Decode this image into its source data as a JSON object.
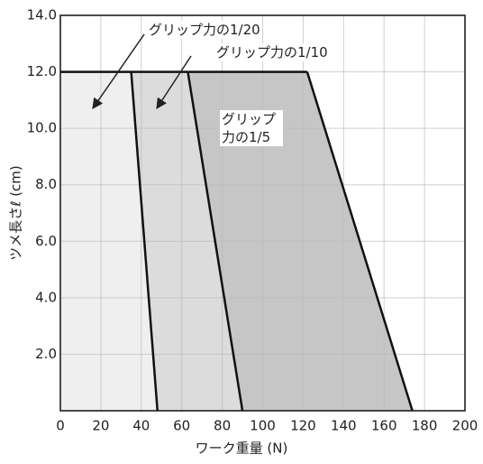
{
  "chart_data": {
    "type": "area",
    "x_label": "ワーク重量 (N)",
    "y_label": "ツメ長さℓ (cm)",
    "series": [
      {
        "name": "グリップ力の1/20",
        "color": "#efefef",
        "x": [
          35,
          48
        ],
        "y": [
          12,
          0
        ]
      },
      {
        "name": "グリップ力の1/10",
        "color": "#dcdcdc",
        "x": [
          63,
          90
        ],
        "y": [
          12,
          0
        ]
      },
      {
        "name": "グリップ力の1/5",
        "color": "#c6c6c6",
        "x": [
          122,
          174
        ],
        "y": [
          12,
          0
        ]
      }
    ],
    "xlim": [
      0,
      200
    ],
    "xticks": [
      0,
      20,
      40,
      60,
      80,
      100,
      120,
      140,
      160,
      180,
      200
    ],
    "ylim": [
      0,
      14
    ],
    "yticks": [
      {
        "value": 2,
        "label": "2.0"
      },
      {
        "value": 4,
        "label": "4.0"
      },
      {
        "value": 6,
        "label": "6.0"
      },
      {
        "value": 8,
        "label": "8.0"
      },
      {
        "value": 10,
        "label": "10.0"
      },
      {
        "value": 12,
        "label": "12.0"
      },
      {
        "value": 14,
        "label": "14.0"
      }
    ],
    "grid": true
  }
}
